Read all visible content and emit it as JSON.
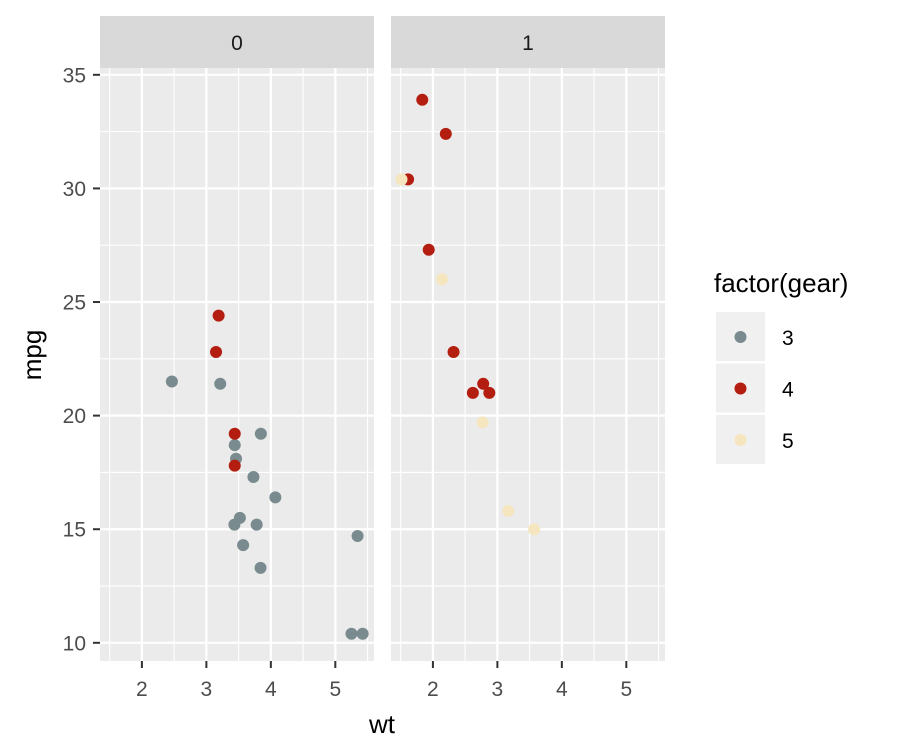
{
  "chart_data": {
    "type": "scatter",
    "facet_variable": "am",
    "facets": [
      "0",
      "1"
    ],
    "xlabel": "wt",
    "ylabel": "mpg",
    "xlim": [
      1.35,
      5.6
    ],
    "ylim": [
      9.2,
      35.3
    ],
    "x_ticks": [
      "2",
      "3",
      "4",
      "5"
    ],
    "y_ticks": [
      "10",
      "15",
      "20",
      "25",
      "30",
      "35"
    ],
    "grid": true,
    "legend": {
      "title": "factor(gear)",
      "position": "right",
      "entries": [
        {
          "label": "3",
          "color": "#7A8B8F"
        },
        {
          "label": "4",
          "color": "#B41E10"
        },
        {
          "label": "5",
          "color": "#F6E6C0"
        }
      ]
    },
    "series": [
      {
        "name": "3",
        "color": "#7A8B8F",
        "points": [
          {
            "facet": "0",
            "x": 3.215,
            "y": 21.4
          },
          {
            "facet": "0",
            "x": 3.44,
            "y": 18.7
          },
          {
            "facet": "0",
            "x": 3.46,
            "y": 18.1
          },
          {
            "facet": "0",
            "x": 3.57,
            "y": 14.3
          },
          {
            "facet": "0",
            "x": 4.07,
            "y": 16.4
          },
          {
            "facet": "0",
            "x": 3.73,
            "y": 17.3
          },
          {
            "facet": "0",
            "x": 3.78,
            "y": 15.2
          },
          {
            "facet": "0",
            "x": 5.25,
            "y": 10.4
          },
          {
            "facet": "0",
            "x": 5.424,
            "y": 10.4
          },
          {
            "facet": "0",
            "x": 5.345,
            "y": 14.7
          },
          {
            "facet": "0",
            "x": 2.465,
            "y": 21.5
          },
          {
            "facet": "0",
            "x": 3.52,
            "y": 15.5
          },
          {
            "facet": "0",
            "x": 3.435,
            "y": 15.2
          },
          {
            "facet": "0",
            "x": 3.84,
            "y": 13.3
          },
          {
            "facet": "0",
            "x": 3.845,
            "y": 19.2
          }
        ]
      },
      {
        "name": "4",
        "color": "#B41E10",
        "points": [
          {
            "facet": "0",
            "x": 3.19,
            "y": 24.4
          },
          {
            "facet": "0",
            "x": 3.15,
            "y": 22.8
          },
          {
            "facet": "0",
            "x": 3.44,
            "y": 19.2
          },
          {
            "facet": "0",
            "x": 3.44,
            "y": 17.8
          },
          {
            "facet": "1",
            "x": 2.62,
            "y": 21.0
          },
          {
            "facet": "1",
            "x": 2.875,
            "y": 21.0
          },
          {
            "facet": "1",
            "x": 2.32,
            "y": 22.8
          },
          {
            "facet": "1",
            "x": 2.2,
            "y": 32.4
          },
          {
            "facet": "1",
            "x": 1.615,
            "y": 30.4
          },
          {
            "facet": "1",
            "x": 1.835,
            "y": 33.9
          },
          {
            "facet": "1",
            "x": 1.935,
            "y": 27.3
          },
          {
            "facet": "1",
            "x": 2.78,
            "y": 21.4
          }
        ]
      },
      {
        "name": "5",
        "color": "#F6E6C0",
        "points": [
          {
            "facet": "1",
            "x": 2.14,
            "y": 26.0
          },
          {
            "facet": "1",
            "x": 1.513,
            "y": 30.4
          },
          {
            "facet": "1",
            "x": 3.17,
            "y": 15.8
          },
          {
            "facet": "1",
            "x": 2.77,
            "y": 19.7
          },
          {
            "facet": "1",
            "x": 3.57,
            "y": 15.0
          }
        ]
      }
    ]
  }
}
